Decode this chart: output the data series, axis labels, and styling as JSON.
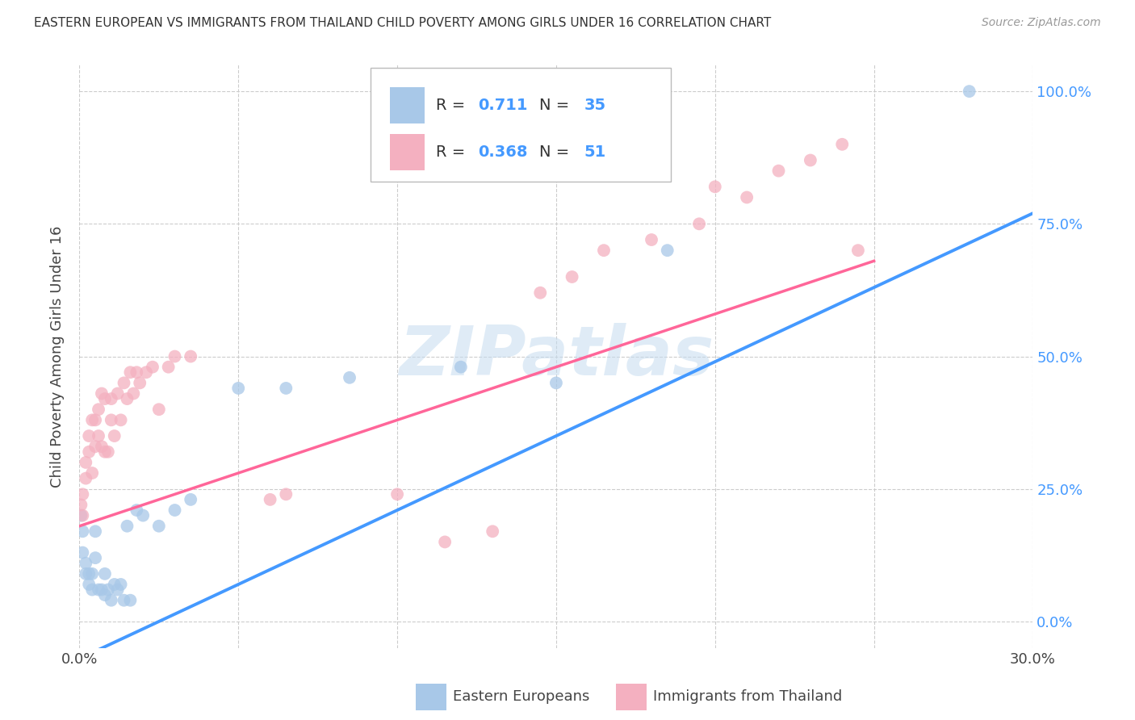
{
  "title": "EASTERN EUROPEAN VS IMMIGRANTS FROM THAILAND CHILD POVERTY AMONG GIRLS UNDER 16 CORRELATION CHART",
  "source": "Source: ZipAtlas.com",
  "ylabel": "Child Poverty Among Girls Under 16",
  "xlim": [
    0.0,
    0.3
  ],
  "ylim": [
    -0.05,
    1.05
  ],
  "yticks": [
    0.0,
    0.25,
    0.5,
    0.75,
    1.0
  ],
  "ytick_labels": [
    "0.0%",
    "25.0%",
    "50.0%",
    "75.0%",
    "100.0%"
  ],
  "xticks": [
    0.0,
    0.05,
    0.1,
    0.15,
    0.2,
    0.25,
    0.3
  ],
  "xtick_labels": [
    "0.0%",
    "",
    "",
    "",
    "",
    "",
    "30.0%"
  ],
  "blue_fill_color": "#A8C8E8",
  "pink_fill_color": "#F4B0C0",
  "blue_line_color": "#4499FF",
  "pink_line_color": "#FF6699",
  "accent_color": "#4499FF",
  "R_blue": "0.711",
  "N_blue": "35",
  "R_pink": "0.368",
  "N_pink": "51",
  "legend_label_blue": "Eastern Europeans",
  "legend_label_pink": "Immigrants from Thailand",
  "watermark": "ZIPatlas",
  "blue_scatter_x": [
    0.0005,
    0.001,
    0.001,
    0.002,
    0.002,
    0.003,
    0.003,
    0.004,
    0.004,
    0.005,
    0.005,
    0.006,
    0.007,
    0.008,
    0.008,
    0.009,
    0.01,
    0.011,
    0.012,
    0.013,
    0.014,
    0.015,
    0.016,
    0.018,
    0.02,
    0.025,
    0.03,
    0.035,
    0.05,
    0.065,
    0.085,
    0.12,
    0.15,
    0.185,
    0.28
  ],
  "blue_scatter_y": [
    0.2,
    0.17,
    0.13,
    0.11,
    0.09,
    0.09,
    0.07,
    0.09,
    0.06,
    0.17,
    0.12,
    0.06,
    0.06,
    0.05,
    0.09,
    0.06,
    0.04,
    0.07,
    0.06,
    0.07,
    0.04,
    0.18,
    0.04,
    0.21,
    0.2,
    0.18,
    0.21,
    0.23,
    0.44,
    0.44,
    0.46,
    0.48,
    0.45,
    0.7,
    1.0
  ],
  "pink_scatter_x": [
    0.0005,
    0.001,
    0.001,
    0.002,
    0.002,
    0.003,
    0.003,
    0.004,
    0.004,
    0.005,
    0.005,
    0.006,
    0.006,
    0.007,
    0.007,
    0.008,
    0.008,
    0.009,
    0.01,
    0.01,
    0.011,
    0.012,
    0.013,
    0.014,
    0.015,
    0.016,
    0.017,
    0.018,
    0.019,
    0.021,
    0.023,
    0.025,
    0.028,
    0.03,
    0.035,
    0.06,
    0.065,
    0.1,
    0.115,
    0.13,
    0.145,
    0.155,
    0.165,
    0.18,
    0.195,
    0.2,
    0.21,
    0.22,
    0.23,
    0.24,
    0.245
  ],
  "pink_scatter_y": [
    0.22,
    0.24,
    0.2,
    0.27,
    0.3,
    0.32,
    0.35,
    0.28,
    0.38,
    0.33,
    0.38,
    0.35,
    0.4,
    0.33,
    0.43,
    0.32,
    0.42,
    0.32,
    0.38,
    0.42,
    0.35,
    0.43,
    0.38,
    0.45,
    0.42,
    0.47,
    0.43,
    0.47,
    0.45,
    0.47,
    0.48,
    0.4,
    0.48,
    0.5,
    0.5,
    0.23,
    0.24,
    0.24,
    0.15,
    0.17,
    0.62,
    0.65,
    0.7,
    0.72,
    0.75,
    0.82,
    0.8,
    0.85,
    0.87,
    0.9,
    0.7
  ],
  "blue_line_x": [
    0.0,
    0.3
  ],
  "blue_line_y": [
    -0.07,
    0.77
  ],
  "pink_line_x": [
    0.0,
    0.25
  ],
  "pink_line_y": [
    0.18,
    0.68
  ],
  "background_color": "#FFFFFF",
  "grid_color": "#CCCCCC"
}
